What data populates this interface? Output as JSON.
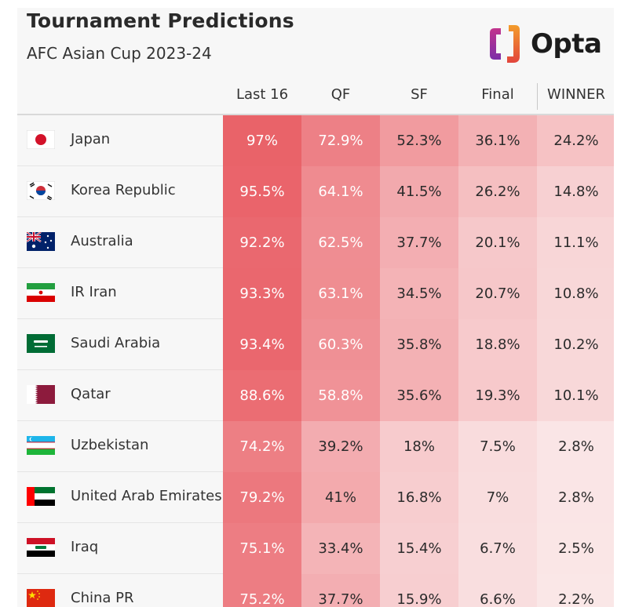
{
  "header": {
    "title": "Tournament Predictions",
    "subtitle": "AFC Asian Cup 2023-24",
    "brand": "Opta"
  },
  "chart_data": {
    "type": "table",
    "columns": [
      "Last 16",
      "QF",
      "SF",
      "Final",
      "WINNER"
    ],
    "rows": [
      {
        "team": "Japan",
        "flag": "japan-flag-icon",
        "values": [
          "97%",
          "72.9%",
          "52.3%",
          "36.1%",
          "24.2%"
        ]
      },
      {
        "team": "Korea Republic",
        "flag": "korea-flag-icon",
        "values": [
          "95.5%",
          "64.1%",
          "41.5%",
          "26.2%",
          "14.8%"
        ]
      },
      {
        "team": "Australia",
        "flag": "australia-flag-icon",
        "values": [
          "92.2%",
          "62.5%",
          "37.7%",
          "20.1%",
          "11.1%"
        ]
      },
      {
        "team": "IR Iran",
        "flag": "iran-flag-icon",
        "values": [
          "93.3%",
          "63.1%",
          "34.5%",
          "20.7%",
          "10.8%"
        ]
      },
      {
        "team": "Saudi Arabia",
        "flag": "saudi-arabia-flag-icon",
        "values": [
          "93.4%",
          "60.3%",
          "35.8%",
          "18.8%",
          "10.2%"
        ]
      },
      {
        "team": "Qatar",
        "flag": "qatar-flag-icon",
        "values": [
          "88.6%",
          "58.8%",
          "35.6%",
          "19.3%",
          "10.1%"
        ]
      },
      {
        "team": "Uzbekistan",
        "flag": "uzbekistan-flag-icon",
        "values": [
          "74.2%",
          "39.2%",
          "18%",
          "7.5%",
          "2.8%"
        ]
      },
      {
        "team": "United Arab Emirates",
        "flag": "uae-flag-icon",
        "values": [
          "79.2%",
          "41%",
          "16.8%",
          "7%",
          "2.8%"
        ]
      },
      {
        "team": "Iraq",
        "flag": "iraq-flag-icon",
        "values": [
          "75.1%",
          "33.4%",
          "15.4%",
          "6.7%",
          "2.5%"
        ]
      },
      {
        "team": "China PR",
        "flag": "china-flag-icon",
        "values": [
          "75.2%",
          "37.7%",
          "15.9%",
          "6.6%",
          "2.2%"
        ]
      }
    ]
  },
  "colors": {
    "heat_max": "#e95f66",
    "heat_min": "#fbecec",
    "background": "#f7f7f7",
    "logo_orange": "#f39c2b",
    "logo_purple": "#8e2fa6"
  }
}
